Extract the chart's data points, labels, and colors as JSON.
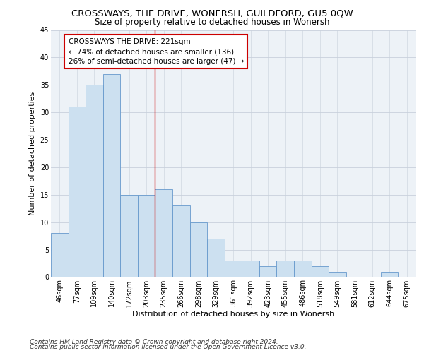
{
  "title": "CROSSWAYS, THE DRIVE, WONERSH, GUILDFORD, GU5 0QW",
  "subtitle": "Size of property relative to detached houses in Wonersh",
  "xlabel": "Distribution of detached houses by size in Wonersh",
  "ylabel": "Number of detached properties",
  "bar_labels": [
    "46sqm",
    "77sqm",
    "109sqm",
    "140sqm",
    "172sqm",
    "203sqm",
    "235sqm",
    "266sqm",
    "298sqm",
    "329sqm",
    "361sqm",
    "392sqm",
    "423sqm",
    "455sqm",
    "486sqm",
    "518sqm",
    "549sqm",
    "581sqm",
    "612sqm",
    "644sqm",
    "675sqm"
  ],
  "bar_values": [
    8,
    31,
    35,
    37,
    15,
    15,
    16,
    13,
    10,
    7,
    3,
    3,
    2,
    3,
    3,
    2,
    1,
    0,
    0,
    1,
    0
  ],
  "bar_color": "#cce0f0",
  "bar_edge_color": "#6699cc",
  "property_line_x": 6,
  "annotation_text": "CROSSWAYS THE DRIVE: 221sqm\n← 74% of detached houses are smaller (136)\n26% of semi-detached houses are larger (47) →",
  "annotation_box_color": "#ffffff",
  "annotation_box_edge": "#cc0000",
  "property_line_color": "#cc0000",
  "ylim": [
    0,
    45
  ],
  "yticks": [
    0,
    5,
    10,
    15,
    20,
    25,
    30,
    35,
    40,
    45
  ],
  "footer1": "Contains HM Land Registry data © Crown copyright and database right 2024.",
  "footer2": "Contains public sector information licensed under the Open Government Licence v3.0.",
  "background_color": "#edf2f7",
  "grid_color": "#c8d0dc",
  "title_fontsize": 9.5,
  "subtitle_fontsize": 8.5,
  "axis_label_fontsize": 8,
  "tick_fontsize": 7,
  "footer_fontsize": 6.5
}
